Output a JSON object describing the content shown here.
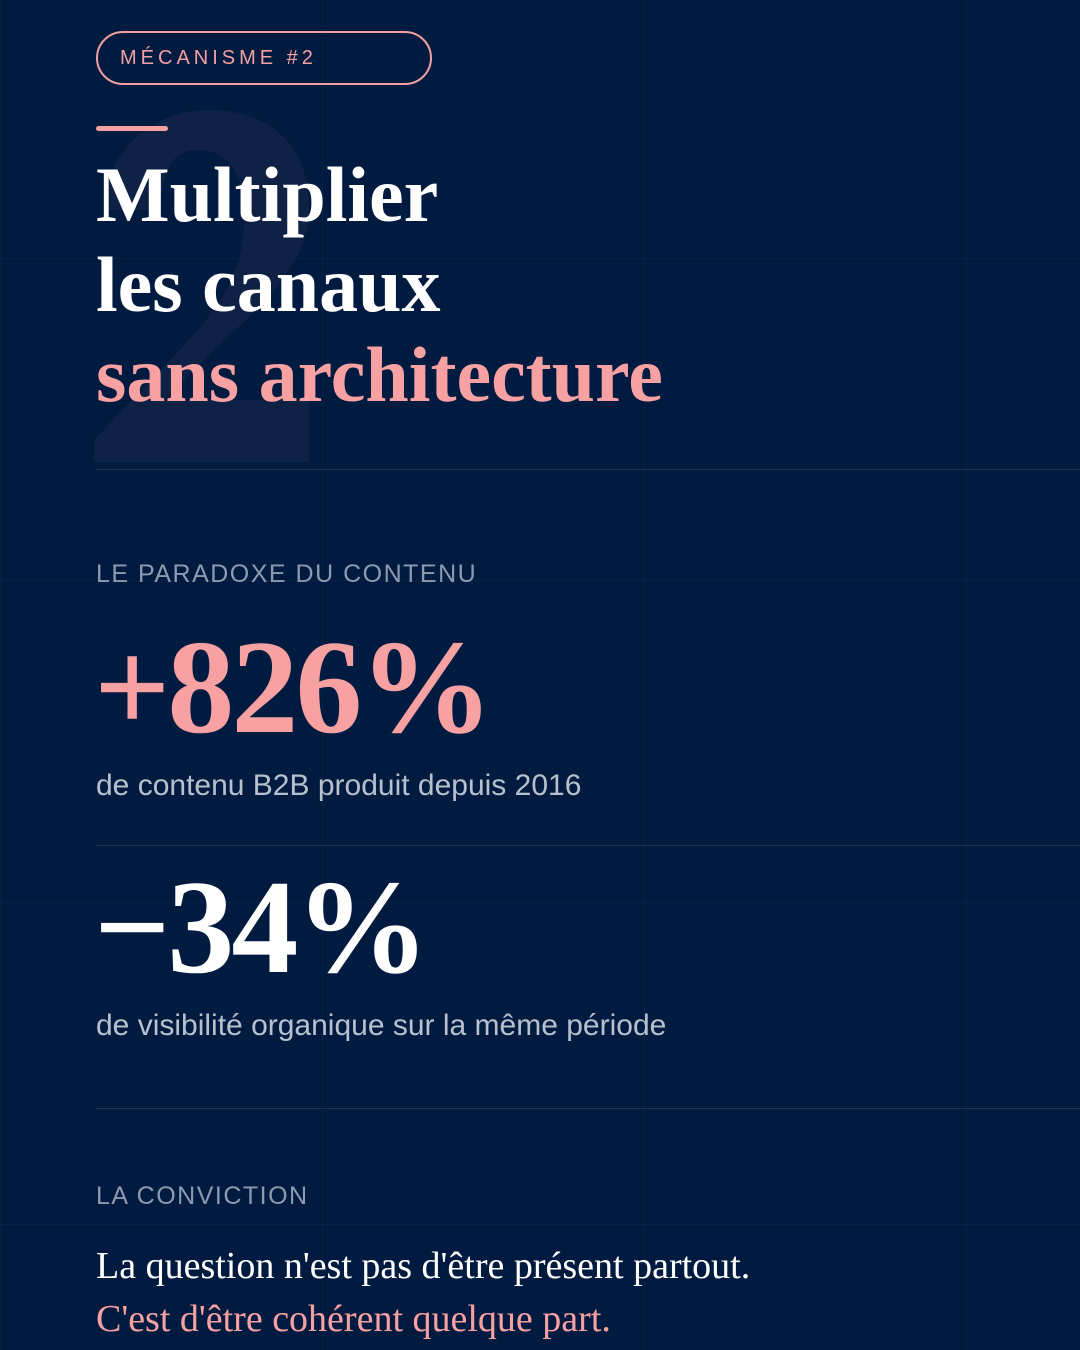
{
  "badge": "MÉCANISME #2",
  "watermark_number": "2",
  "title": {
    "line1": "Multiplier",
    "line2": "les canaux",
    "line3": "sans architecture"
  },
  "paradox": {
    "label": "LE PARADOXE DU CONTENU",
    "stats": [
      {
        "value": "+826%",
        "description": "de contenu B2B produit depuis 2016"
      },
      {
        "value": "−34%",
        "description": "de visibilité organique sur la même période"
      }
    ]
  },
  "conviction": {
    "label": "LA CONVICTION",
    "line1": "La question n'est pas d'être présent partout.",
    "line2": "C'est d'être cohérent quelque part."
  },
  "colors": {
    "background": "#011b40",
    "accent": "#f7a1a3",
    "text": "#ffffff",
    "muted": "#b7c0cd"
  }
}
